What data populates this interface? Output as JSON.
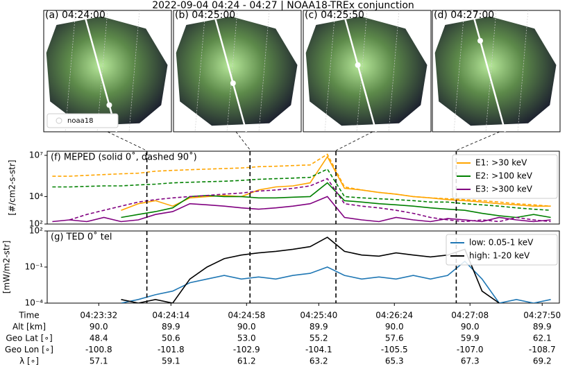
{
  "title": "2022-09-04 04:24 - 04:27 | NOAA18-TREx conjunction",
  "panels": [
    {
      "letter": "(a)",
      "time": "04:24:00"
    },
    {
      "letter": "(b)",
      "time": "04:25:00"
    },
    {
      "letter": "(c)",
      "time": "04:25:50"
    },
    {
      "letter": "(d)",
      "time": "04:27:00"
    }
  ],
  "legend_label": "noaa18",
  "chart_data": [
    {
      "type": "line",
      "title": "(f) MEPED (solid 0˚, dashed 90˚)",
      "ylabel": "[#/cm2-s-str]",
      "log_y": true,
      "xlim": [
        "04:23:02",
        "04:28:00"
      ],
      "x": [
        "04:23:05",
        "04:23:15",
        "04:23:25",
        "04:23:35",
        "04:23:45",
        "04:23:55",
        "04:24:05",
        "04:24:15",
        "04:24:25",
        "04:24:35",
        "04:24:45",
        "04:24:55",
        "04:25:05",
        "04:25:15",
        "04:25:25",
        "04:25:35",
        "04:25:45",
        "04:25:55",
        "04:26:05",
        "04:26:15",
        "04:26:25",
        "04:26:35",
        "04:26:45",
        "04:26:55",
        "04:27:05",
        "04:27:15",
        "04:27:25",
        "04:27:35",
        "04:27:45",
        "04:27:55"
      ],
      "ylim": [
        100,
        20000000
      ],
      "yticks": [
        {
          "value": 100,
          "label": "10²"
        },
        {
          "value": 10000,
          "label": "10⁴"
        },
        {
          "value": 10000000,
          "label": "10⁷"
        }
      ],
      "legend": "upper right",
      "series": [
        {
          "name": "E1: >30 keV",
          "color": "#ffa500",
          "values_0deg": [
            null,
            null,
            null,
            null,
            1000,
            3000,
            5000,
            2000,
            8000,
            10000,
            12000,
            10000,
            30000,
            50000,
            60000,
            100000,
            8000000,
            40000,
            30000,
            20000,
            15000,
            10000,
            8000,
            6000,
            5000,
            4000,
            3000,
            2500,
            2000,
            2000
          ],
          "values_90deg": [
            300000,
            300000,
            350000,
            400000,
            450000,
            500000,
            700000,
            800000,
            900000,
            1000000,
            1100000,
            1200000,
            1500000,
            1600000,
            1800000,
            2000000,
            12000000,
            50000,
            30000,
            20000,
            15000,
            10000,
            8000,
            7000,
            6000,
            5000,
            4000,
            3000,
            2500,
            2000
          ]
        },
        {
          "name": "E2: >100 keV",
          "color": "#008000",
          "values_0deg": [
            null,
            null,
            null,
            null,
            300,
            500,
            800,
            1500,
            10000,
            12000,
            10000,
            10000,
            8000,
            8000,
            9000,
            10000,
            100000,
            5000,
            4000,
            3000,
            2500,
            2000,
            1500,
            1200,
            1000,
            600,
            400,
            300,
            500,
            300
          ],
          "values_90deg": [
            50000,
            50000,
            55000,
            60000,
            60000,
            70000,
            80000,
            100000,
            110000,
            120000,
            130000,
            150000,
            180000,
            200000,
            220000,
            250000,
            1000000,
            10000,
            8000,
            7000,
            6000,
            5000,
            4000,
            4000,
            3000,
            2500,
            2000,
            1500,
            1200,
            1000
          ]
        },
        {
          "name": "E3: >300 keV",
          "color": "#800080",
          "values_0deg": [
            150,
            200,
            150,
            300,
            150,
            200,
            500,
            800,
            3000,
            2500,
            2000,
            1500,
            1200,
            1500,
            2000,
            3000,
            10000,
            300,
            200,
            150,
            300,
            200,
            150,
            250,
            200,
            150,
            300,
            200,
            150,
            200
          ],
          "values_90deg": [
            null,
            200,
            500,
            1000,
            2000,
            4000,
            6000,
            8000,
            10000,
            12000,
            15000,
            18000,
            25000,
            30000,
            40000,
            60000,
            200000,
            3000,
            2000,
            1500,
            1000,
            600,
            300,
            200,
            150,
            200,
            150,
            300,
            200,
            150
          ]
        }
      ]
    },
    {
      "type": "line",
      "title": "(g) TED 0˚ tel",
      "ylabel": "[mW/m2-str]",
      "log_y": true,
      "xlim": [
        "04:23:02",
        "04:28:00"
      ],
      "x": [
        "04:23:05",
        "04:23:15",
        "04:23:25",
        "04:23:35",
        "04:23:45",
        "04:23:55",
        "04:24:05",
        "04:24:15",
        "04:24:25",
        "04:24:35",
        "04:24:45",
        "04:24:55",
        "04:25:05",
        "04:25:15",
        "04:25:25",
        "04:25:35",
        "04:25:45",
        "04:25:55",
        "04:26:05",
        "04:26:15",
        "04:26:25",
        "04:26:35",
        "04:26:45",
        "04:26:55",
        "04:27:05",
        "04:27:15",
        "04:27:25",
        "04:27:35",
        "04:27:45",
        "04:27:55"
      ],
      "xticks": [
        "04:23:32",
        "04:24:14",
        "04:24:58",
        "04:25:40",
        "04:26:24",
        "04:27:08",
        "04:27:50"
      ],
      "ylim": [
        0.0001,
        100
      ],
      "yticks": [
        {
          "value": 0.0001,
          "label": "10⁻⁴"
        },
        {
          "value": 0.1,
          "label": "10⁻¹"
        },
        {
          "value": 100,
          "label": "10²"
        }
      ],
      "legend": "upper right",
      "series": [
        {
          "name": "low: 0.05-1 keV",
          "color": "#1f77b4",
          "values": [
            null,
            null,
            null,
            null,
            0.0001,
            0.0002,
            0.0005,
            0.001,
            0.005,
            0.01,
            0.02,
            0.01,
            0.015,
            0.01,
            0.02,
            0.03,
            0.1,
            0.02,
            0.01,
            0.015,
            0.01,
            0.02,
            0.01,
            0.02,
            0.3,
            0.01,
            0.0001,
            0.0002,
            0.0001,
            0.0002
          ]
        },
        {
          "name": "high: 1-20 keV",
          "color": "#000000",
          "values": [
            null,
            null,
            null,
            null,
            0.0002,
            0.0001,
            0.0002,
            0.0001,
            0.01,
            0.1,
            0.5,
            1,
            1.5,
            2,
            3,
            5,
            30,
            2,
            1,
            0.8,
            1.5,
            1,
            0.7,
            1,
            3,
            0.001,
            0.0001,
            null,
            0.0002,
            null
          ]
        }
      ]
    }
  ],
  "table": {
    "row_labels": [
      "Time",
      "Alt [km]",
      "Geo Lat [∘]",
      "Geo Lon [∘]",
      "λ [∘]"
    ],
    "rows": [
      [
        "90.0",
        "89.9",
        "90.0",
        "89.9",
        "90.0",
        "90.0",
        "89.9"
      ],
      [
        "48.4",
        "50.6",
        "53.0",
        "55.2",
        "57.6",
        "59.9",
        "62.1"
      ],
      [
        "-100.8",
        "-101.8",
        "-102.9",
        "-104.1",
        "-105.5",
        "-107.0",
        "-108.7"
      ],
      [
        "57.1",
        "59.1",
        "61.2",
        "63.2",
        "65.3",
        "67.3",
        "69.2"
      ]
    ]
  }
}
